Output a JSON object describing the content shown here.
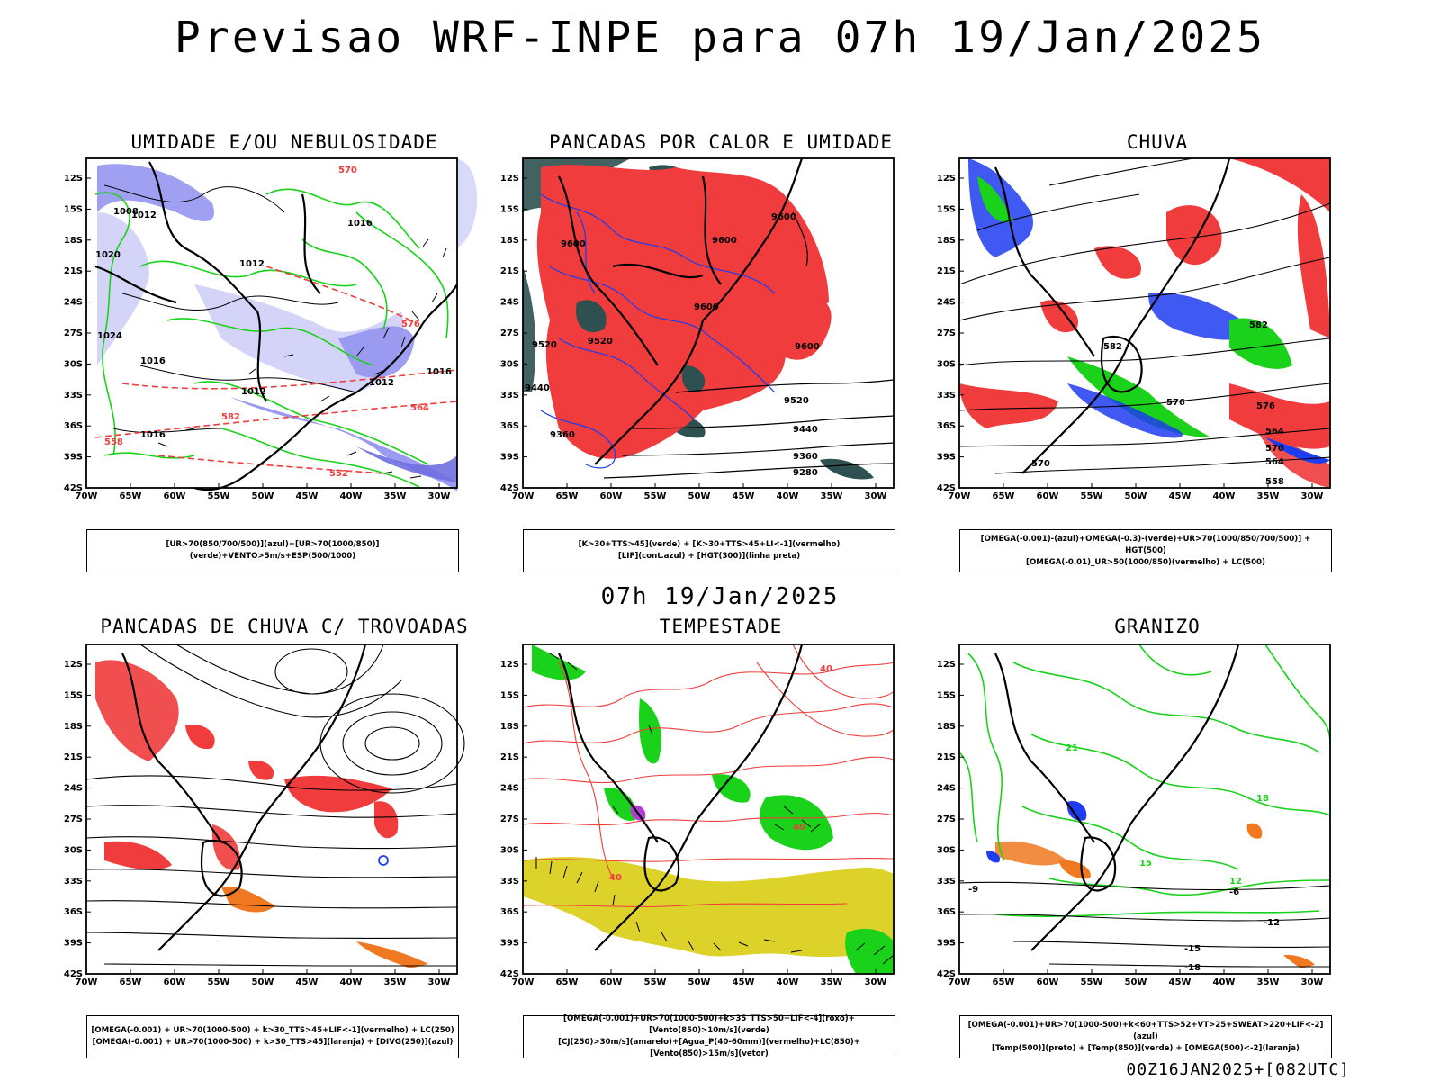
{
  "title": "Previsao WRF-INPE  para 07h 19/Jan/2025",
  "mid_label": "07h 19/Jan/2025",
  "footer": "00Z16JAN2025+[082UTC]",
  "axes": {
    "lat_labels": [
      "12S",
      "15S",
      "18S",
      "21S",
      "24S",
      "27S",
      "30S",
      "33S",
      "36S",
      "39S",
      "42S"
    ],
    "lon_labels": [
      "70W",
      "65W",
      "60W",
      "55W",
      "50W",
      "45W",
      "40W",
      "35W",
      "30W"
    ]
  },
  "colors": {
    "blue_shade": "#8f8ff0",
    "light_blue": "#c9c9f7",
    "green": "#19d219",
    "red": "#f03c3c",
    "dark_teal": "#2e5050",
    "yellow": "#dcd22a",
    "orange": "#f07820",
    "blue": "#1e3cf0",
    "purple": "#b43cd2"
  },
  "panels": [
    {
      "title": "UMIDADE E/OU NEBULOSIDADE",
      "legend": [
        "[UR>70(850/700/500)](azul)+[UR>70(1000/850)](verde)+VENTO>5m/s+ESP(500/1000)"
      ],
      "contour_labels": [
        "1012",
        "1008",
        "1016",
        "1020",
        "1024",
        "1012",
        "1016",
        "1012",
        "1012",
        "1016",
        "1016",
        "570",
        "576",
        "582",
        "564",
        "558",
        "552"
      ]
    },
    {
      "title": "PANCADAS POR CALOR E UMIDADE",
      "legend": [
        "[K>30+TTS>45](verde) + [K>30+TTS>45+LI<-1](vermelho)",
        "[LIF](cont.azul) + [HGT(300)](linha preta)"
      ],
      "contour_labels": [
        "9600",
        "9600",
        "9600",
        "9600",
        "9600",
        "9520",
        "9520",
        "9520",
        "9440",
        "9440",
        "9360",
        "9360",
        "9280"
      ]
    },
    {
      "title": "CHUVA",
      "legend": [
        "[OMEGA(-0.001)-(azul)+OMEGA(-0.3)-(verde)+UR>70(1000/850/700/500)] + HGT(500)",
        "[OMEGA(-0.01)_UR>50(1000/850)(vermelho) + LC(500)"
      ],
      "contour_labels": [
        "582",
        "582",
        "576",
        "576",
        "570",
        "570",
        "564",
        "564",
        "558"
      ]
    },
    {
      "title": "PANCADAS DE CHUVA C/ TROVOADAS",
      "legend": [
        "[OMEGA(-0.001) + UR>70(1000-500) + k>30_TTS>45+LIF<-1](vermelho) + LC(250)",
        "[OMEGA(-0.001) + UR>70(1000-500) + k>30_TTS>45](laranja) + [DIVG(250)](azul)"
      ],
      "contour_labels": []
    },
    {
      "title": "TEMPESTADE",
      "legend": [
        "[OMEGA(-0.001)+UR>70(1000-500)+k>35_TTS>50+LIF<-4](roxo)+[Vento(850)>10m/s](verde)",
        "[CJ(250)>30m/s](amarelo)+[Agua_P(40-60mm)](vermelho)+LC(850)+[Vento(850)>15m/s](vetor)"
      ],
      "contour_labels": [
        "40",
        "40",
        "40"
      ]
    },
    {
      "title": "GRANIZO",
      "legend": [
        "[OMEGA(-0.001)+UR>70(1000-500)+k<60+TTS>52+VT>25+SWEAT>220+LIF<-2](azul)",
        "[Temp(500)](preto) + [Temp(850)](verde) + [OMEGA(500)<-2](laranja)"
      ],
      "contour_labels": [
        "21",
        "18",
        "15",
        "12",
        "-6",
        "-9",
        "-12",
        "-15",
        "-18"
      ]
    }
  ]
}
